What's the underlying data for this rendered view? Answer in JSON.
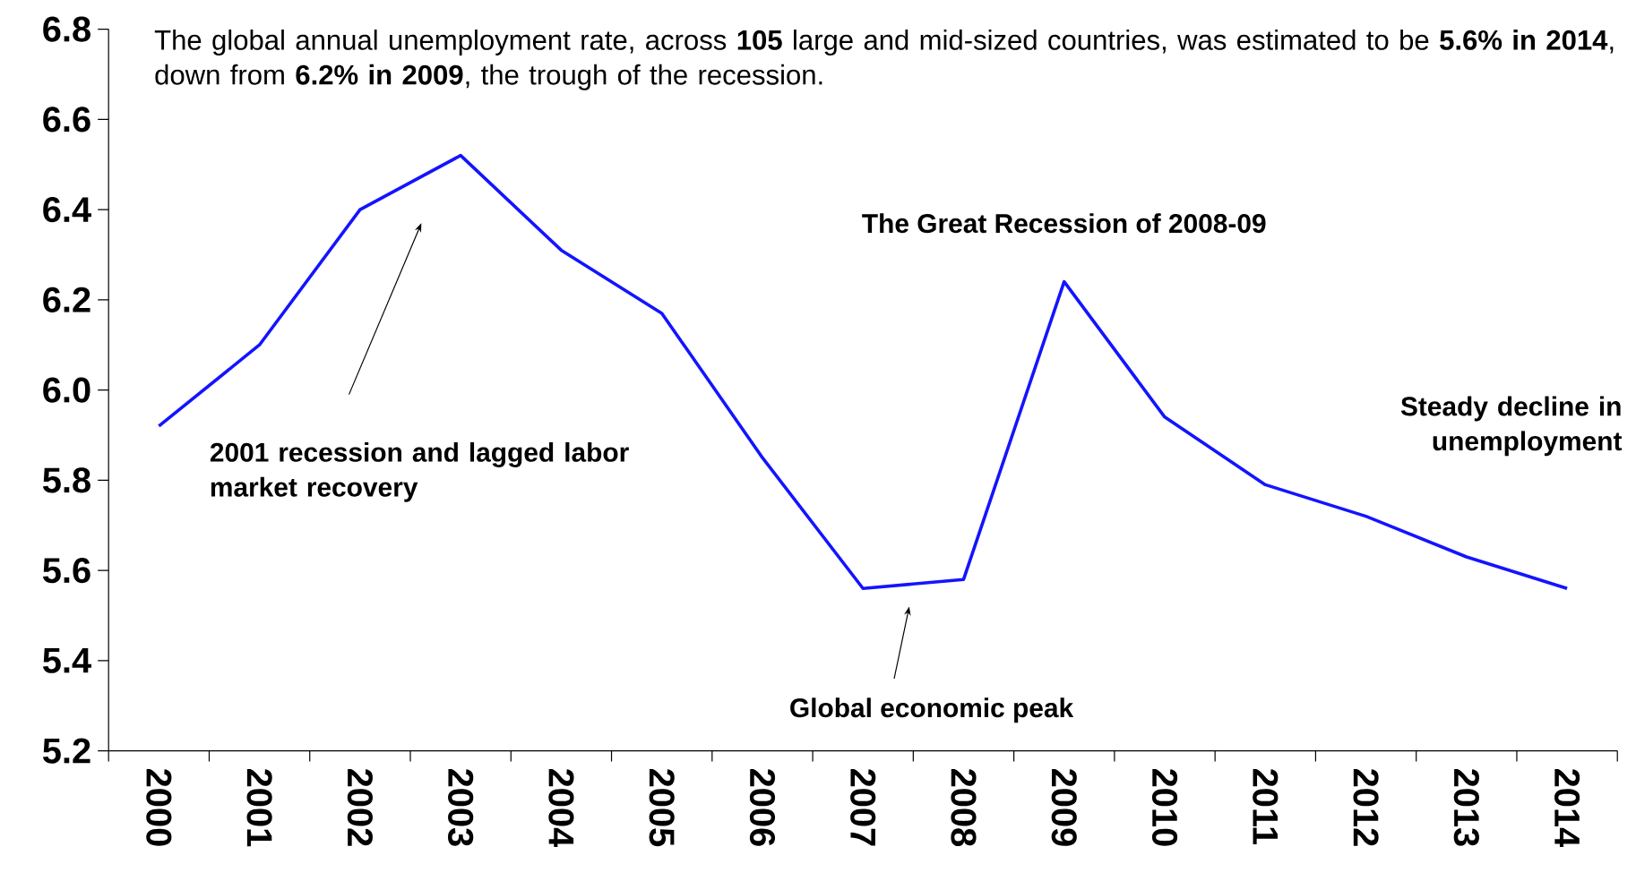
{
  "chart_data": {
    "type": "line",
    "title": "The global annual unemployment rate, across **105** large and mid-sized countries, was estimated to be **5.6% in 2014**, down from **6.2% in 2009**, the trough of the recession.",
    "categories": [
      "2000",
      "2001",
      "2002",
      "2003",
      "2004",
      "2005",
      "2006",
      "2007",
      "2008",
      "2009",
      "2010",
      "2011",
      "2012",
      "2013",
      "2014"
    ],
    "series": [
      {
        "color": "#1414ff",
        "values": [
          5.92,
          6.1,
          6.4,
          6.52,
          6.31,
          6.17,
          5.85,
          5.56,
          5.58,
          6.24,
          5.94,
          5.79,
          5.72,
          5.63,
          5.56
        ]
      }
    ],
    "ylim": [
      5.2,
      6.8
    ],
    "yticks": [
      {
        "value": 5.2,
        "label": "5.2"
      },
      {
        "value": 5.4,
        "label": "5.4"
      },
      {
        "value": 5.6,
        "label": "5.6"
      },
      {
        "value": 5.8,
        "label": "5.8"
      },
      {
        "value": 6.0,
        "label": "6.0"
      },
      {
        "value": 6.2,
        "label": "6.2"
      },
      {
        "value": 6.4,
        "label": "6.4"
      },
      {
        "value": 6.6,
        "label": "6.6"
      },
      {
        "value": 6.8,
        "label": "6.8"
      }
    ],
    "grid": false,
    "annotations": [
      "2001 recession and lagged labor market recovery",
      "The Great Recession of 2008-09",
      "Global economic peak",
      "Steady decline in unemployment"
    ]
  }
}
